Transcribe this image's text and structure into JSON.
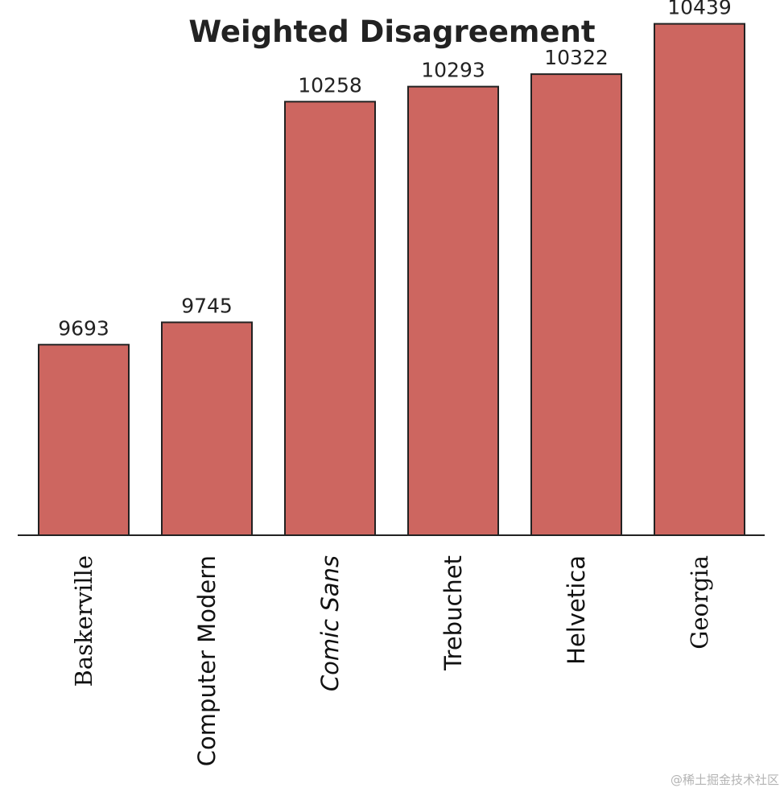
{
  "chart_data": {
    "type": "bar",
    "title": "Weighted Disagreement",
    "xlabel": "",
    "ylabel": "",
    "categories": [
      "Baskerville",
      "Computer Modern",
      "Comic Sans",
      "Trebuchet",
      "Helvetica",
      "Georgia"
    ],
    "values": [
      9693,
      9745,
      10258,
      10293,
      10322,
      10439
    ],
    "ylim": [
      9250,
      10500
    ],
    "grid": false,
    "legend": "none",
    "bar_color": "#cd6660",
    "bar_edge_color": "#222222",
    "data_labels": [
      "9693",
      "9745",
      "10258",
      "10293",
      "10322",
      "10439"
    ]
  },
  "watermark": "@稀土掘金技术社区"
}
